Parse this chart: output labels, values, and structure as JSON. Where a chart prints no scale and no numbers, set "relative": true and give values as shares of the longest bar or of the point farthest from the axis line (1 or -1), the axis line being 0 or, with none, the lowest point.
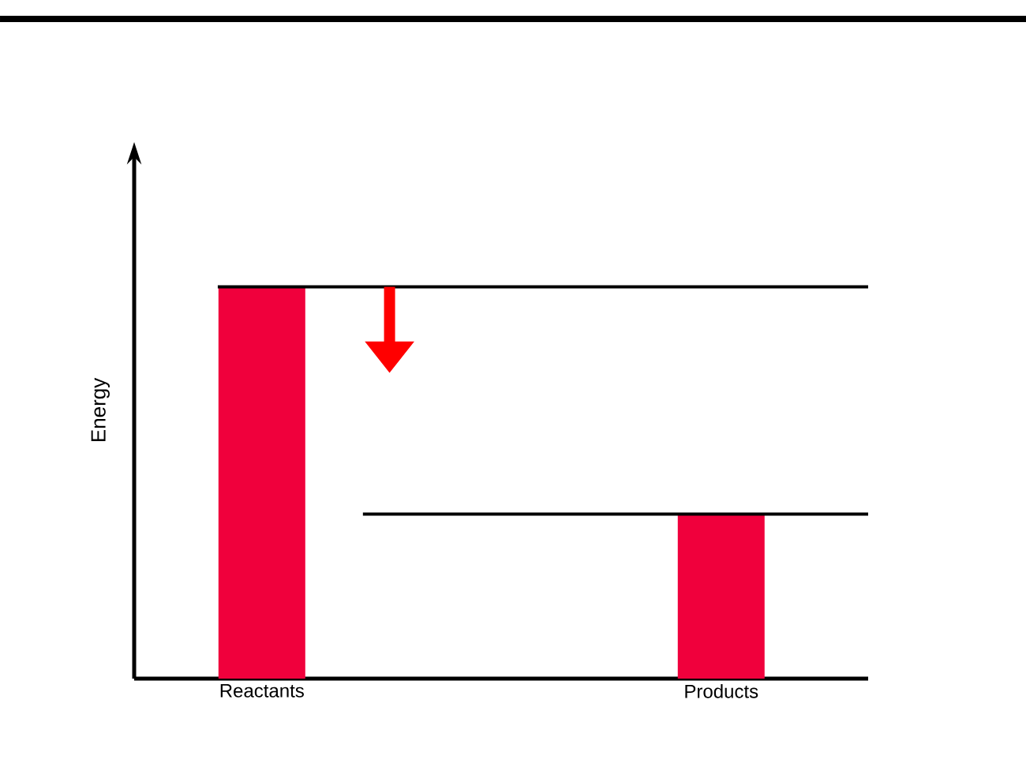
{
  "chart_data": {
    "type": "bar",
    "relative": true,
    "ylabel": "Energy",
    "categories": [
      "Reactants",
      "Products"
    ],
    "values": [
      1,
      0.42
    ],
    "color": "#f0003c",
    "ref_lines": [
      {
        "axis": "y",
        "value": 1,
        "color": "#000000"
      },
      {
        "axis": "y",
        "value": 0.42,
        "color": "#000000"
      }
    ]
  }
}
